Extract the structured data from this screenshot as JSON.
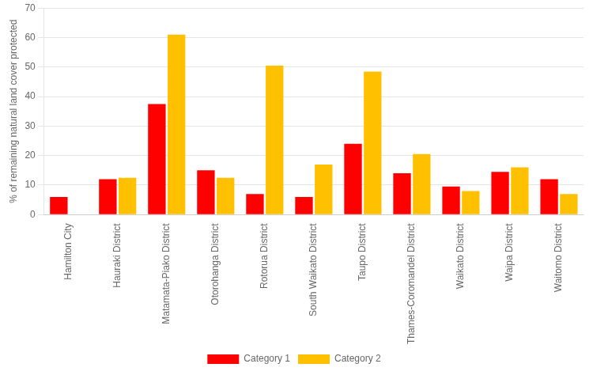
{
  "chart_data": {
    "type": "bar",
    "categories": [
      "Hamilton City",
      "Hauraki District",
      "Matamata-Piako District",
      "Otorohanga District",
      "Rotorua District",
      "South Waikato District",
      "Taupo District",
      "Thames-Coromandel District",
      "Waikato District",
      "Waipa District",
      "Waitomo District"
    ],
    "series": [
      {
        "name": "Category 1",
        "color": "#ff0000",
        "values": [
          6,
          12,
          37.5,
          15,
          7,
          6,
          24,
          14,
          9.5,
          14.5,
          12
        ]
      },
      {
        "name": "Category 2",
        "color": "#ffc000",
        "values": [
          0,
          12.5,
          61,
          12.5,
          50.5,
          17,
          48.5,
          20.5,
          8,
          16,
          7
        ]
      }
    ],
    "ylabel": "% of remaining natural land cover protected",
    "ylim": [
      0,
      70
    ],
    "yticks": [
      0,
      10,
      20,
      30,
      40,
      50,
      60,
      70
    ],
    "grid": true,
    "legend": "bottom"
  }
}
